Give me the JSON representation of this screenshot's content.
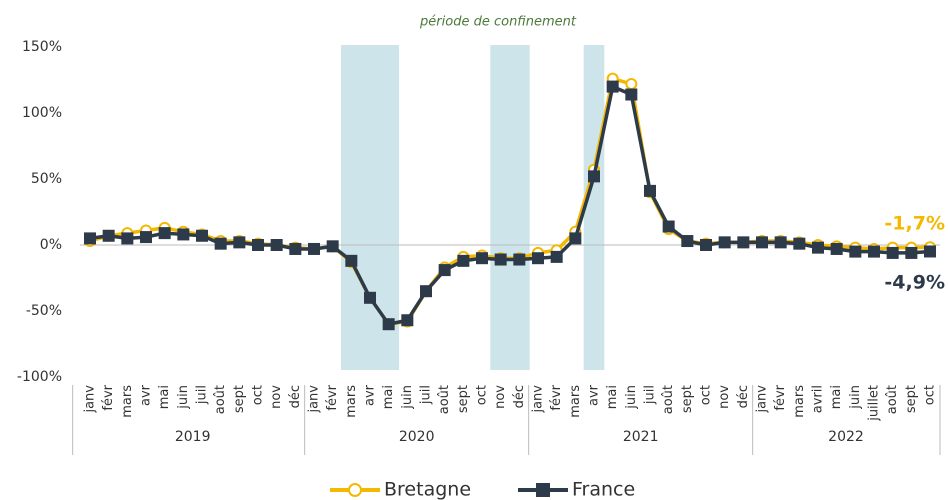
{
  "chart_data": {
    "type": "line",
    "annotation": "période de confinement",
    "categories": [
      "janv",
      "févr",
      "mars",
      "avr",
      "mai",
      "juin",
      "juil",
      "août",
      "sept",
      "oct",
      "nov",
      "déc",
      "janv",
      "févr",
      "mars",
      "avr",
      "mai",
      "juin",
      "juil",
      "août",
      "sept",
      "oct",
      "nov",
      "déc",
      "janv",
      "févr",
      "mars",
      "avr",
      "mai",
      "juin",
      "juil",
      "août",
      "sept",
      "oct",
      "nov",
      "déc",
      "janv",
      "févr",
      "mars",
      "avril",
      "mai",
      "juin",
      "juillet",
      "août",
      "sept",
      "oct"
    ],
    "groups": [
      {
        "label": "2019",
        "count": 12
      },
      {
        "label": "2020",
        "count": 12
      },
      {
        "label": "2021",
        "count": 12
      },
      {
        "label": "2022",
        "count": 10
      }
    ],
    "shaded": [
      [
        14,
        16
      ],
      [
        22,
        23
      ],
      [
        27,
        27
      ]
    ],
    "ylim": [
      -100,
      150
    ],
    "yticks": [
      {
        "value": -100,
        "label": "-100%"
      },
      {
        "value": -50,
        "label": "-50%"
      },
      {
        "value": 0,
        "label": "0%"
      },
      {
        "value": 50,
        "label": "50%"
      },
      {
        "value": 100,
        "label": "100%"
      },
      {
        "value": 150,
        "label": "150%"
      }
    ],
    "legend": "bottom",
    "series": [
      {
        "name": "Bretagne",
        "color": "#f5b800",
        "marker": "circle",
        "end_label": "-1,7%",
        "values": [
          3,
          7,
          9,
          11,
          13,
          10,
          8,
          3,
          3,
          1,
          0,
          -2,
          -3,
          -1,
          -13,
          -40,
          -60,
          -58,
          -35,
          -17,
          -9,
          -8,
          -10,
          -10,
          -6,
          -4,
          10,
          57,
          126,
          122,
          40,
          12,
          3,
          1,
          2,
          2,
          3,
          3,
          2,
          0,
          -1,
          -2,
          -3,
          -2,
          -2,
          -1.7
        ]
      },
      {
        "name": "France",
        "color": "#2d3a4a",
        "marker": "square",
        "end_label": "-4,9%",
        "values": [
          5,
          7,
          5,
          6,
          9,
          8,
          7,
          1,
          2,
          0,
          0,
          -3,
          -3,
          -1,
          -12,
          -40,
          -60,
          -57,
          -35,
          -19,
          -12,
          -10,
          -11,
          -11,
          -10,
          -9,
          5,
          52,
          120,
          114,
          41,
          14,
          3,
          0,
          2,
          2,
          2,
          2,
          1,
          -2,
          -3,
          -5,
          -5,
          -6,
          -6,
          -4.9
        ]
      }
    ]
  }
}
